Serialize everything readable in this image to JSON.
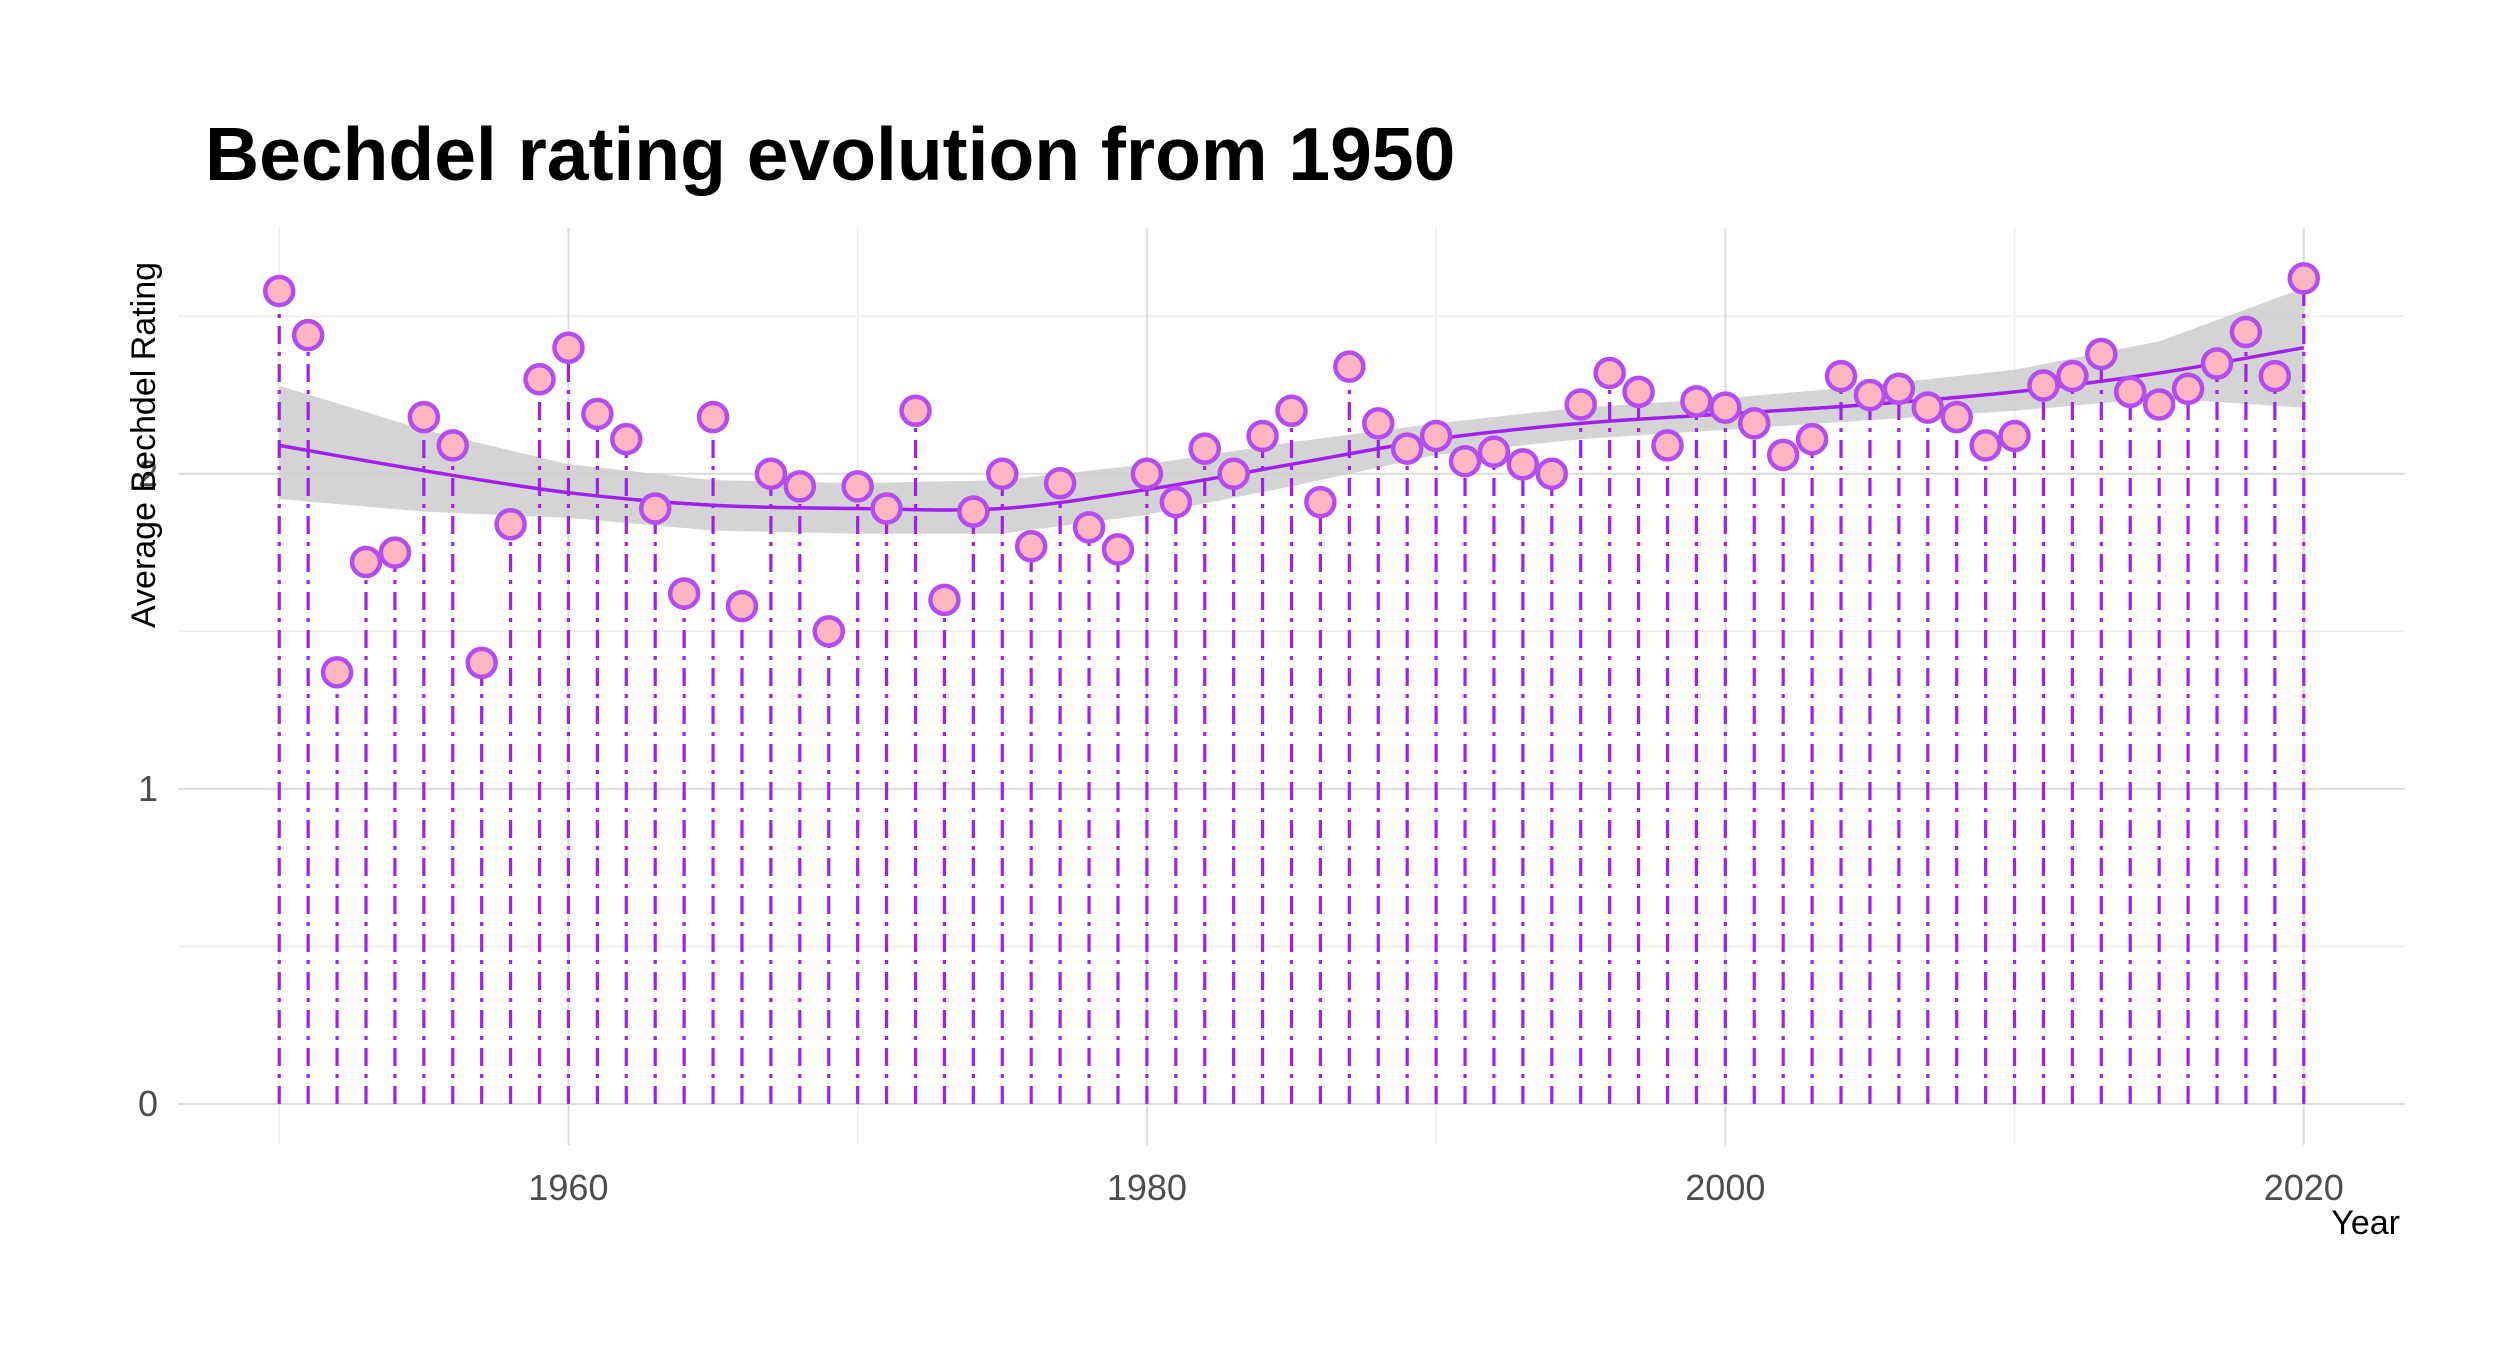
{
  "chart_data": {
    "type": "scatter",
    "title": "Bechdel rating evolution from 1950",
    "xlabel": "Year",
    "ylabel": "Average Bechdel Rating",
    "xlim": [
      1946.5,
      2023.5
    ],
    "ylim": [
      -0.13,
      2.78
    ],
    "x_ticks": [
      1960,
      1980,
      2000,
      2020
    ],
    "y_ticks": [
      0,
      1,
      2
    ],
    "grid": true,
    "legend": "none",
    "x": [
      1950,
      1951,
      1952,
      1953,
      1954,
      1955,
      1956,
      1957,
      1958,
      1959,
      1960,
      1961,
      1962,
      1963,
      1964,
      1965,
      1966,
      1967,
      1968,
      1969,
      1970,
      1971,
      1972,
      1973,
      1974,
      1975,
      1976,
      1977,
      1978,
      1979,
      1980,
      1981,
      1982,
      1983,
      1984,
      1985,
      1986,
      1987,
      1988,
      1989,
      1990,
      1991,
      1992,
      1993,
      1994,
      1995,
      1996,
      1997,
      1998,
      1999,
      2000,
      2001,
      2002,
      2003,
      2004,
      2005,
      2006,
      2007,
      2008,
      2009,
      2010,
      2011,
      2012,
      2013,
      2014,
      2015,
      2016,
      2017,
      2018,
      2019,
      2020
    ],
    "y": [
      2.58,
      2.44,
      1.37,
      1.72,
      1.75,
      2.18,
      2.09,
      1.4,
      1.84,
      2.3,
      2.4,
      2.19,
      2.11,
      1.89,
      1.62,
      2.18,
      1.58,
      2.0,
      1.96,
      1.5,
      1.96,
      1.89,
      2.2,
      1.6,
      1.88,
      2.0,
      1.77,
      1.97,
      1.83,
      1.76,
      2.0,
      1.91,
      2.08,
      2.0,
      2.12,
      2.2,
      1.91,
      2.34,
      2.16,
      2.08,
      2.12,
      2.04,
      2.07,
      2.03,
      2.0,
      2.22,
      2.32,
      2.26,
      2.09,
      2.23,
      2.21,
      2.16,
      2.06,
      2.11,
      2.31,
      2.25,
      2.27,
      2.21,
      2.18,
      2.09,
      2.12,
      2.28,
      2.31,
      2.38,
      2.26,
      2.22,
      2.27,
      2.35,
      2.45,
      2.31,
      2.62
    ],
    "smooth": {
      "x": [
        1950,
        1955,
        1960,
        1965,
        1970,
        1975,
        1980,
        1985,
        1990,
        1995,
        2000,
        2005,
        2010,
        2015,
        2020
      ],
      "y": [
        2.09,
        2.01,
        1.94,
        1.9,
        1.89,
        1.89,
        1.95,
        2.03,
        2.11,
        2.16,
        2.19,
        2.22,
        2.26,
        2.32,
        2.4
      ],
      "ci_lower": [
        1.92,
        1.88,
        1.86,
        1.82,
        1.81,
        1.81,
        1.87,
        1.96,
        2.06,
        2.11,
        2.14,
        2.17,
        2.2,
        2.24,
        2.21
      ],
      "ci_upper": [
        2.28,
        2.14,
        2.03,
        1.98,
        1.97,
        1.98,
        2.03,
        2.1,
        2.16,
        2.21,
        2.24,
        2.28,
        2.33,
        2.42,
        2.59
      ]
    },
    "colors": {
      "stem": "#a020f0",
      "point_fill": "#ffb6c1",
      "point_stroke": "#b44cf0",
      "smooth_line": "#a020f0",
      "ribbon": "#cccccc"
    }
  }
}
